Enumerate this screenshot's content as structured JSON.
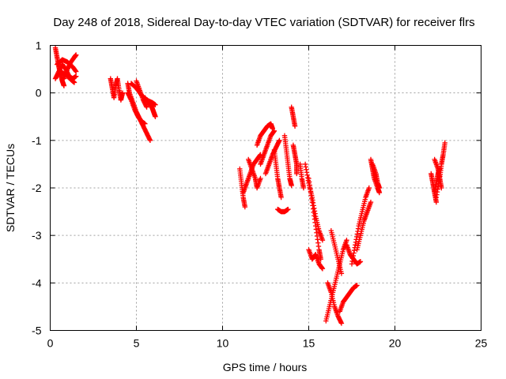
{
  "chart_data": {
    "type": "scatter",
    "title": "Day 248 of 2018, Sidereal Day-to-day VTEC variation (SDTVAR) for receiver flrs",
    "xlabel": "GPS time / hours",
    "ylabel": "SDTVAR / TECUs",
    "xlim": [
      0,
      25
    ],
    "ylim": [
      -5,
      1
    ],
    "x_ticks": [
      "0",
      "5",
      "10",
      "15",
      "20",
      "25"
    ],
    "y_ticks": [
      "1",
      "0",
      "-1",
      "-2",
      "-3",
      "-4",
      "-5"
    ],
    "grid": true,
    "marker": "plus",
    "color": "#ff0000",
    "series": [
      {
        "segments": [
          [
            [
              0.3,
              0.95
            ],
            [
              0.4,
              0.75
            ],
            [
              0.5,
              0.55
            ],
            [
              0.6,
              0.4
            ],
            [
              0.7,
              0.25
            ],
            [
              0.8,
              0.15
            ]
          ],
          [
            [
              0.3,
              0.3
            ],
            [
              0.5,
              0.45
            ],
            [
              0.7,
              0.6
            ],
            [
              0.9,
              0.5
            ],
            [
              1.1,
              0.35
            ],
            [
              1.3,
              0.3
            ],
            [
              1.5,
              0.35
            ]
          ],
          [
            [
              0.4,
              0.6
            ],
            [
              0.7,
              0.7
            ],
            [
              1.0,
              0.65
            ],
            [
              1.3,
              0.55
            ],
            [
              1.5,
              0.45
            ]
          ],
          [
            [
              0.8,
              0.3
            ],
            [
              1.0,
              0.5
            ],
            [
              1.2,
              0.65
            ],
            [
              1.4,
              0.75
            ],
            [
              1.5,
              0.8
            ]
          ],
          [
            [
              0.6,
              0.45
            ],
            [
              0.9,
              0.38
            ],
            [
              1.2,
              0.28
            ],
            [
              1.4,
              0.22
            ]
          ],
          [
            [
              3.5,
              0.3
            ],
            [
              3.6,
              0.1
            ],
            [
              3.7,
              -0.1
            ],
            [
              3.8,
              0.15
            ],
            [
              3.9,
              0.3
            ],
            [
              4.0,
              0.05
            ],
            [
              4.1,
              -0.15
            ],
            [
              4.2,
              0.0
            ]
          ],
          [
            [
              4.5,
              0.2
            ],
            [
              4.6,
              0.0
            ],
            [
              4.8,
              -0.2
            ],
            [
              5.0,
              -0.4
            ],
            [
              5.2,
              -0.55
            ],
            [
              5.4,
              -0.7
            ],
            [
              5.6,
              -0.85
            ],
            [
              5.8,
              -1.0
            ]
          ],
          [
            [
              4.5,
              0.0
            ],
            [
              4.7,
              -0.15
            ],
            [
              4.9,
              -0.35
            ],
            [
              5.1,
              -0.5
            ],
            [
              5.3,
              -0.6
            ],
            [
              5.5,
              -0.65
            ]
          ],
          [
            [
              4.7,
              0.2
            ],
            [
              5.0,
              0.1
            ],
            [
              5.3,
              -0.05
            ],
            [
              5.6,
              -0.15
            ],
            [
              5.9,
              -0.2
            ],
            [
              6.1,
              -0.25
            ]
          ],
          [
            [
              5.5,
              -0.1
            ],
            [
              5.7,
              -0.2
            ],
            [
              5.9,
              -0.3
            ],
            [
              6.0,
              -0.4
            ],
            [
              6.1,
              -0.5
            ]
          ],
          [
            [
              5.0,
              0.25
            ],
            [
              5.2,
              0.05
            ],
            [
              5.4,
              -0.15
            ],
            [
              5.6,
              -0.3
            ]
          ],
          [
            [
              11.0,
              -1.6
            ],
            [
              11.1,
              -1.9
            ],
            [
              11.2,
              -2.2
            ],
            [
              11.3,
              -2.4
            ]
          ],
          [
            [
              11.2,
              -2.1
            ],
            [
              11.4,
              -1.9
            ],
            [
              11.6,
              -1.7
            ],
            [
              11.8,
              -1.5
            ],
            [
              12.0,
              -1.4
            ],
            [
              12.2,
              -1.3
            ]
          ],
          [
            [
              11.5,
              -1.4
            ],
            [
              11.7,
              -1.6
            ],
            [
              11.9,
              -1.8
            ],
            [
              12.0,
              -2.0
            ],
            [
              12.2,
              -1.8
            ]
          ],
          [
            [
              12.0,
              -1.1
            ],
            [
              12.2,
              -0.9
            ],
            [
              12.4,
              -0.8
            ],
            [
              12.6,
              -0.7
            ],
            [
              12.8,
              -0.65
            ],
            [
              12.9,
              -0.75
            ]
          ],
          [
            [
              12.2,
              -1.5
            ],
            [
              12.4,
              -1.3
            ],
            [
              12.6,
              -1.1
            ],
            [
              12.8,
              -0.9
            ],
            [
              13.0,
              -0.8
            ]
          ],
          [
            [
              12.5,
              -1.7
            ],
            [
              12.7,
              -1.5
            ],
            [
              12.9,
              -1.3
            ],
            [
              13.1,
              -1.15
            ],
            [
              13.3,
              -1.0
            ]
          ],
          [
            [
              13.0,
              -1.2
            ],
            [
              13.1,
              -1.5
            ],
            [
              13.2,
              -1.8
            ],
            [
              13.3,
              -2.0
            ],
            [
              13.4,
              -2.2
            ]
          ],
          [
            [
              13.6,
              -0.9
            ],
            [
              13.7,
              -1.2
            ],
            [
              13.8,
              -1.5
            ],
            [
              13.9,
              -1.8
            ],
            [
              14.0,
              -1.95
            ]
          ],
          [
            [
              13.2,
              -2.45
            ],
            [
              13.4,
              -2.5
            ],
            [
              13.6,
              -2.5
            ],
            [
              13.8,
              -2.45
            ]
          ],
          [
            [
              14.0,
              -0.3
            ],
            [
              14.1,
              -0.5
            ],
            [
              14.2,
              -0.7
            ]
          ],
          [
            [
              14.1,
              -1.1
            ],
            [
              14.2,
              -1.3
            ],
            [
              14.3,
              -1.5
            ],
            [
              14.3,
              -1.7
            ]
          ],
          [
            [
              14.5,
              -1.5
            ],
            [
              14.6,
              -1.8
            ],
            [
              14.7,
              -2.0
            ]
          ],
          [
            [
              14.8,
              -1.5
            ],
            [
              15.0,
              -1.9
            ],
            [
              15.2,
              -2.2
            ],
            [
              15.4,
              -2.6
            ],
            [
              15.6,
              -2.9
            ],
            [
              15.8,
              -3.1
            ]
          ],
          [
            [
              15.0,
              -1.8
            ],
            [
              15.2,
              -2.3
            ],
            [
              15.4,
              -2.8
            ],
            [
              15.6,
              -3.3
            ],
            [
              15.7,
              -3.5
            ]
          ],
          [
            [
              15.0,
              -3.3
            ],
            [
              15.2,
              -3.5
            ],
            [
              15.4,
              -3.4
            ],
            [
              15.6,
              -3.6
            ],
            [
              15.8,
              -3.7
            ]
          ],
          [
            [
              16.0,
              -4.8
            ],
            [
              16.2,
              -4.5
            ],
            [
              16.4,
              -4.2
            ],
            [
              16.6,
              -3.9
            ],
            [
              16.8,
              -3.6
            ],
            [
              17.0,
              -3.3
            ],
            [
              17.2,
              -3.1
            ]
          ],
          [
            [
              16.1,
              -4.0
            ],
            [
              16.3,
              -4.2
            ],
            [
              16.5,
              -4.5
            ],
            [
              16.7,
              -4.7
            ],
            [
              16.9,
              -4.85
            ]
          ],
          [
            [
              16.3,
              -2.9
            ],
            [
              16.5,
              -3.2
            ],
            [
              16.7,
              -3.5
            ],
            [
              16.9,
              -3.8
            ]
          ],
          [
            [
              16.8,
              -4.6
            ],
            [
              17.0,
              -4.4
            ],
            [
              17.2,
              -4.3
            ],
            [
              17.4,
              -4.2
            ],
            [
              17.6,
              -4.1
            ],
            [
              17.8,
              -4.05
            ]
          ],
          [
            [
              17.2,
              -3.2
            ],
            [
              17.4,
              -3.4
            ],
            [
              17.6,
              -3.5
            ],
            [
              17.8,
              -3.6
            ],
            [
              18.0,
              -3.55
            ]
          ],
          [
            [
              17.5,
              -3.6
            ],
            [
              17.7,
              -3.2
            ],
            [
              17.9,
              -2.8
            ],
            [
              18.1,
              -2.5
            ],
            [
              18.3,
              -2.2
            ],
            [
              18.5,
              -2.0
            ]
          ],
          [
            [
              17.8,
              -3.3
            ],
            [
              18.0,
              -3.0
            ],
            [
              18.2,
              -2.7
            ],
            [
              18.4,
              -2.5
            ],
            [
              18.6,
              -2.3
            ]
          ],
          [
            [
              18.6,
              -1.4
            ],
            [
              18.7,
              -1.6
            ],
            [
              18.8,
              -1.8
            ],
            [
              19.0,
              -2.0
            ],
            [
              19.1,
              -2.1
            ]
          ],
          [
            [
              18.7,
              -1.5
            ],
            [
              18.9,
              -1.7
            ],
            [
              19.0,
              -1.9
            ],
            [
              19.1,
              -2.0
            ]
          ],
          [
            [
              22.1,
              -1.7
            ],
            [
              22.2,
              -1.9
            ],
            [
              22.3,
              -2.1
            ],
            [
              22.4,
              -2.3
            ]
          ],
          [
            [
              22.3,
              -2.1
            ],
            [
              22.4,
              -1.9
            ],
            [
              22.5,
              -1.7
            ],
            [
              22.6,
              -1.6
            ]
          ],
          [
            [
              22.3,
              -1.4
            ],
            [
              22.5,
              -1.6
            ],
            [
              22.6,
              -1.8
            ],
            [
              22.7,
              -2.0
            ]
          ],
          [
            [
              22.4,
              -2.2
            ],
            [
              22.6,
              -1.8
            ],
            [
              22.7,
              -1.5
            ],
            [
              22.8,
              -1.3
            ],
            [
              22.9,
              -1.05
            ]
          ]
        ]
      }
    ]
  }
}
